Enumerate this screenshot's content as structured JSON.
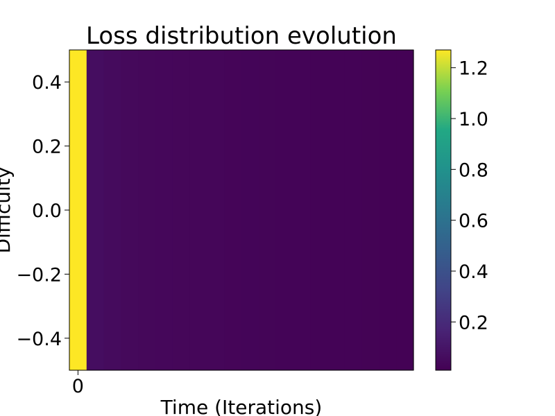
{
  "chart_data": {
    "type": "heatmap",
    "title": "Loss distribution evolution",
    "xlabel": "Time (Iterations)",
    "ylabel": "Difficulty",
    "ylim": [
      -0.5,
      0.5
    ],
    "yticks": [
      0.4,
      0.2,
      0.0,
      -0.2,
      -0.4
    ],
    "ytick_labels": [
      "0.4",
      "0.2",
      "0.0",
      "−0.2",
      "−0.4"
    ],
    "xticks": [
      0
    ],
    "xtick_labels": [
      "0"
    ],
    "colormap": "viridis",
    "colorbar": {
      "range": [
        0.01,
        1.27
      ],
      "ticks": [
        1.2,
        1.0,
        0.8,
        0.6,
        0.4,
        0.2
      ],
      "tick_labels": [
        "1.2",
        "1.0",
        "0.8",
        "0.6",
        "0.4",
        "0.2"
      ]
    },
    "columns": [
      1.27,
      0.065,
      0.055,
      0.045,
      0.04,
      0.038,
      0.036,
      0.034,
      0.032,
      0.03,
      0.028,
      0.026,
      0.024,
      0.022,
      0.02,
      0.019,
      0.018,
      0.017,
      0.016,
      0.015
    ]
  }
}
